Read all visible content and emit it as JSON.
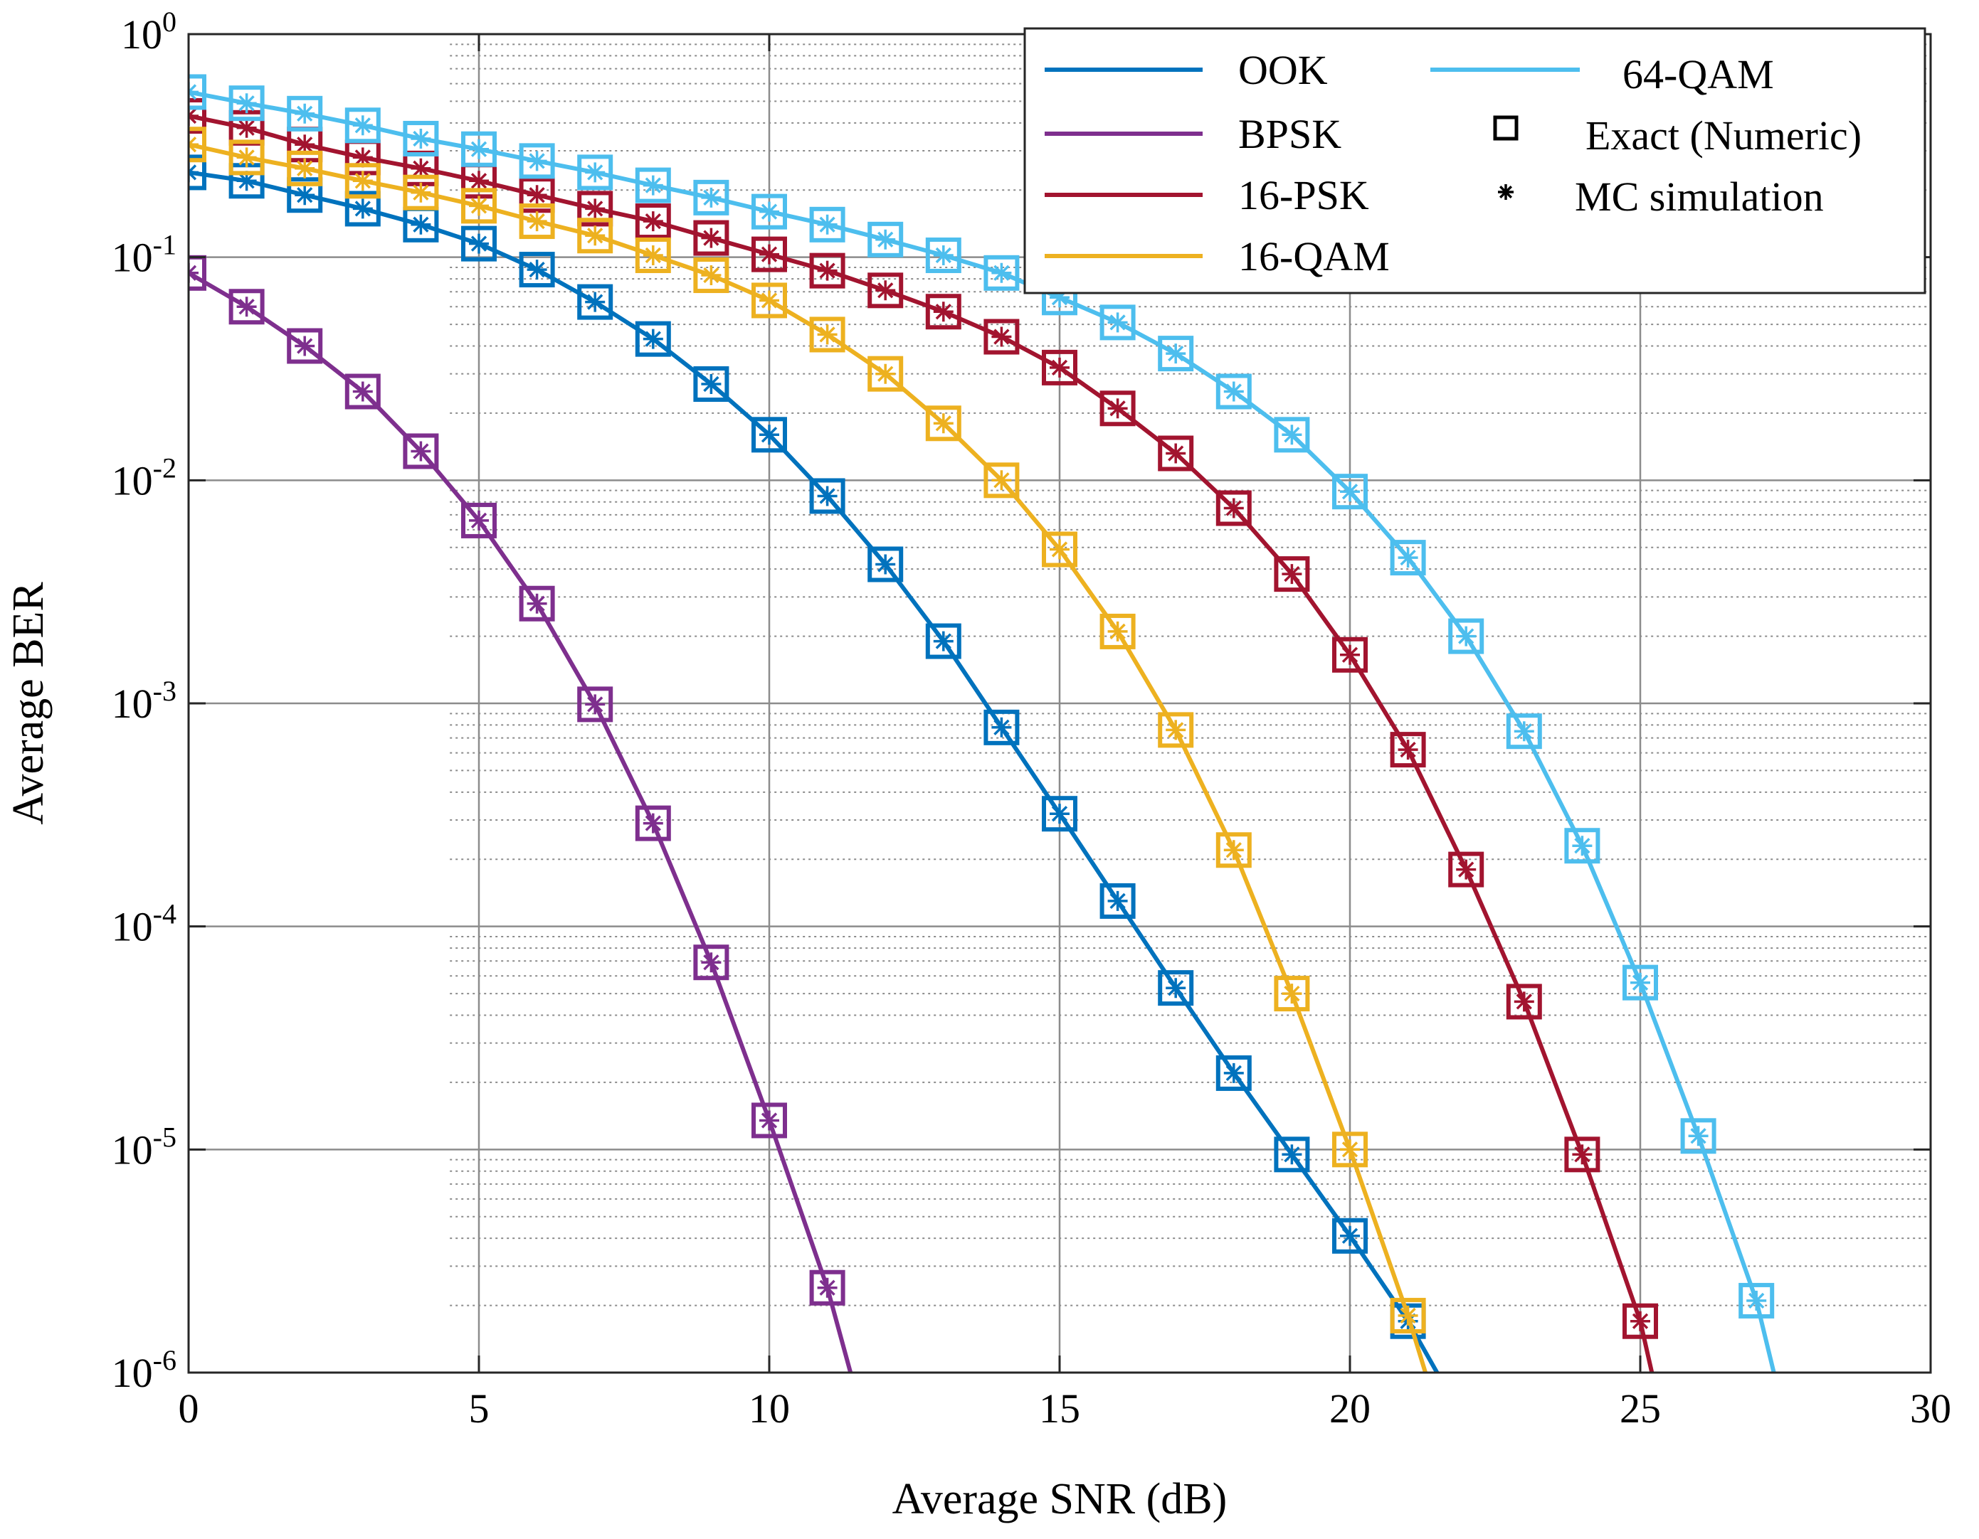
{
  "chart_data": {
    "type": "line",
    "title": "",
    "xlabel": "Average SNR (dB)",
    "ylabel": "Average BER",
    "xlim": [
      0,
      30
    ],
    "ylim": [
      1e-06,
      1
    ],
    "yscale": "log",
    "grid": true,
    "legend_position": "top-right",
    "x_ticks": [
      0,
      5,
      10,
      15,
      20,
      25,
      30
    ],
    "y_ticks": [
      {
        "value": 1,
        "base": "10",
        "exp": "0"
      },
      {
        "value": 0.1,
        "base": "10",
        "exp": "-1"
      },
      {
        "value": 0.01,
        "base": "10",
        "exp": "-2"
      },
      {
        "value": 0.001,
        "base": "10",
        "exp": "-3"
      },
      {
        "value": 0.0001,
        "base": "10",
        "exp": "-4"
      },
      {
        "value": 1e-05,
        "base": "10",
        "exp": "-5"
      },
      {
        "value": 1e-06,
        "base": "10",
        "exp": "-6"
      }
    ],
    "series": [
      {
        "name": "OOK",
        "color": "#0072BD",
        "x": [
          0,
          1,
          2,
          3,
          4,
          5,
          6,
          7,
          8,
          9,
          10,
          11,
          12,
          13,
          14,
          15,
          16,
          17,
          18,
          19,
          20,
          21,
          21.5
        ],
        "y": [
          0.24,
          0.22,
          0.19,
          0.165,
          0.14,
          0.115,
          0.088,
          0.063,
          0.043,
          0.027,
          0.016,
          0.0085,
          0.0042,
          0.0019,
          0.00078,
          0.00032,
          0.00013,
          5.3e-05,
          2.2e-05,
          9.5e-06,
          4.1e-06,
          1.7e-06,
          1e-06
        ]
      },
      {
        "name": "BPSK",
        "color": "#7E2F8E",
        "x": [
          0,
          1,
          2,
          3,
          4,
          5,
          6,
          7,
          8,
          9,
          10,
          11,
          11.4
        ],
        "y": [
          0.085,
          0.06,
          0.04,
          0.025,
          0.0135,
          0.0066,
          0.0028,
          0.00099,
          0.00029,
          6.9e-05,
          1.35e-05,
          2.4e-06,
          1e-06
        ]
      },
      {
        "name": "16-PSK",
        "color": "#A2142F",
        "x": [
          0,
          1,
          2,
          3,
          4,
          5,
          6,
          7,
          8,
          9,
          10,
          11,
          12,
          13,
          14,
          15,
          16,
          17,
          18,
          19,
          20,
          21,
          22,
          23,
          24,
          25,
          25.2
        ],
        "y": [
          0.43,
          0.38,
          0.32,
          0.28,
          0.25,
          0.22,
          0.19,
          0.165,
          0.145,
          0.122,
          0.103,
          0.087,
          0.071,
          0.057,
          0.044,
          0.032,
          0.021,
          0.0132,
          0.0075,
          0.0038,
          0.00165,
          0.00062,
          0.00018,
          4.6e-05,
          9.5e-06,
          1.7e-06,
          1e-06
        ]
      },
      {
        "name": "16-QAM",
        "color": "#EDB120",
        "x": [
          0,
          1,
          2,
          3,
          4,
          5,
          6,
          7,
          8,
          9,
          10,
          11,
          12,
          13,
          14,
          15,
          16,
          17,
          18,
          19,
          20,
          21,
          21.3
        ],
        "y": [
          0.32,
          0.28,
          0.25,
          0.22,
          0.195,
          0.17,
          0.145,
          0.125,
          0.102,
          0.083,
          0.064,
          0.045,
          0.03,
          0.018,
          0.01,
          0.0049,
          0.0021,
          0.00076,
          0.00022,
          5e-05,
          1e-05,
          1.8e-06,
          1e-06
        ]
      },
      {
        "name": "64-QAM",
        "color": "#4DBEEE",
        "x": [
          0,
          1,
          2,
          3,
          4,
          5,
          6,
          7,
          8,
          9,
          10,
          11,
          12,
          13,
          14,
          15,
          16,
          17,
          18,
          19,
          20,
          21,
          22,
          23,
          24,
          25,
          26,
          27,
          27.3
        ],
        "y": [
          0.55,
          0.49,
          0.44,
          0.39,
          0.34,
          0.305,
          0.27,
          0.24,
          0.21,
          0.185,
          0.16,
          0.14,
          0.12,
          0.102,
          0.085,
          0.066,
          0.051,
          0.037,
          0.025,
          0.016,
          0.0089,
          0.0045,
          0.002,
          0.00075,
          0.00023,
          5.6e-05,
          1.15e-05,
          2.1e-06,
          1e-06
        ]
      }
    ],
    "legend": {
      "lines": [
        "OOK",
        "BPSK",
        "16-PSK",
        "16-QAM",
        "64-QAM"
      ],
      "markers": [
        {
          "symbol": "square",
          "label": "Exact (Numeric)"
        },
        {
          "symbol": "asterisk",
          "label": "MC simulation"
        }
      ]
    }
  }
}
